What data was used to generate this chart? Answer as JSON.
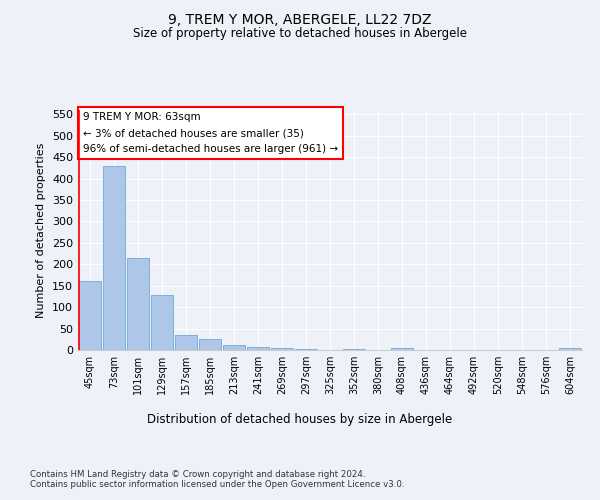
{
  "title1": "9, TREM Y MOR, ABERGELE, LL22 7DZ",
  "title2": "Size of property relative to detached houses in Abergele",
  "xlabel": "Distribution of detached houses by size in Abergele",
  "ylabel": "Number of detached properties",
  "bar_color": "#aec6e8",
  "bar_edge_color": "#5a9fd4",
  "categories": [
    "45sqm",
    "73sqm",
    "101sqm",
    "129sqm",
    "157sqm",
    "185sqm",
    "213sqm",
    "241sqm",
    "269sqm",
    "297sqm",
    "325sqm",
    "352sqm",
    "380sqm",
    "408sqm",
    "436sqm",
    "464sqm",
    "492sqm",
    "520sqm",
    "548sqm",
    "576sqm",
    "604sqm"
  ],
  "values": [
    160,
    430,
    215,
    128,
    35,
    25,
    12,
    7,
    5,
    2,
    0,
    3,
    0,
    5,
    0,
    0,
    0,
    0,
    0,
    0,
    5
  ],
  "ylim": [
    0,
    560
  ],
  "yticks": [
    0,
    50,
    100,
    150,
    200,
    250,
    300,
    350,
    400,
    450,
    500,
    550
  ],
  "annotation_text": "9 TREM Y MOR: 63sqm\n← 3% of detached houses are smaller (35)\n96% of semi-detached houses are larger (961) →",
  "annotation_box_color": "white",
  "annotation_box_edge_color": "red",
  "footnote1": "Contains HM Land Registry data © Crown copyright and database right 2024.",
  "footnote2": "Contains public sector information licensed under the Open Government Licence v3.0.",
  "background_color": "#eef2f8",
  "grid_color": "white"
}
